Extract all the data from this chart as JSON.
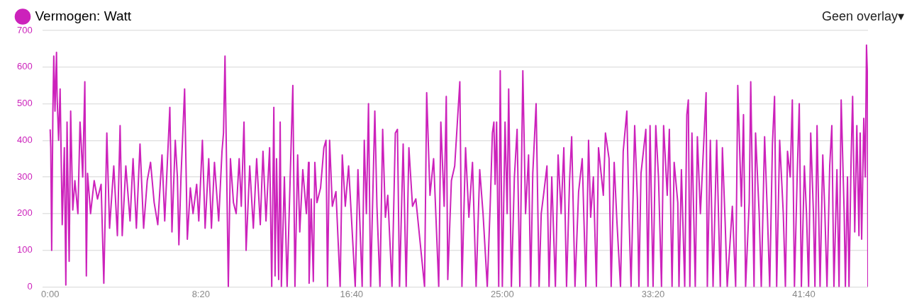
{
  "chart_data": {
    "type": "line",
    "annotations": [
      "Geen overlay▾"
    ],
    "legend": "top left",
    "grid": "y",
    "marker": "none",
    "line_style": "solid",
    "xlim": [
      -26,
      2713
    ],
    "ylim": [
      0,
      700
    ],
    "xticks": [
      {
        "value": 0,
        "label": "0:00"
      },
      {
        "value": 500,
        "label": "8:20"
      },
      {
        "value": 1000,
        "label": "16:40"
      },
      {
        "value": 1500,
        "label": "25:00"
      },
      {
        "value": 2000,
        "label": "33:20"
      },
      {
        "value": 2500,
        "label": "41:40"
      }
    ],
    "yticks": [
      0,
      100,
      200,
      300,
      400,
      500,
      600,
      700
    ],
    "x": [
      0,
      2,
      5,
      9,
      12,
      16,
      21,
      23,
      28,
      33,
      40,
      47,
      52,
      56,
      63,
      68,
      75,
      82,
      92,
      99,
      103,
      108,
      115,
      120,
      124,
      134,
      146,
      157,
      169,
      178,
      188,
      197,
      211,
      223,
      232,
      239,
      251,
      265,
      275,
      286,
      298,
      310,
      322,
      333,
      345,
      357,
      371,
      380,
      397,
      404,
      415,
      422,
      427,
      434,
      446,
      455,
      465,
      474,
      486,
      493,
      505,
      514,
      526,
      535,
      545,
      559,
      570,
      575,
      580,
      587,
      591,
      598,
      608,
      617,
      627,
      634,
      643,
      650,
      662,
      674,
      685,
      697,
      706,
      716,
      728,
      735,
      742,
      746,
      751,
      758,
      763,
      767,
      777,
      786,
      798,
      805,
      812,
      821,
      828,
      838,
      850,
      857,
      859,
      866,
      873,
      878,
      885,
      897,
      908,
      915,
      920,
      927,
      936,
      948,
      962,
      969,
      979,
      990,
      1012,
      1021,
      1035,
      1042,
      1049,
      1056,
      1063,
      1077,
      1084,
      1094,
      1103,
      1112,
      1120,
      1134,
      1145,
      1152,
      1159,
      1171,
      1181,
      1190,
      1202,
      1213,
      1242,
      1249,
      1260,
      1272,
      1289,
      1296,
      1307,
      1314,
      1319,
      1331,
      1342,
      1359,
      1366,
      1378,
      1389,
      1401,
      1413,
      1425,
      1436,
      1450,
      1460,
      1467,
      1472,
      1476,
      1481,
      1488,
      1493,
      1500,
      1509,
      1516,
      1521,
      1530,
      1540,
      1549,
      1558,
      1568,
      1577,
      1587,
      1594,
      1601,
      1612,
      1622,
      1629,
      1638,
      1648,
      1655,
      1664,
      1676,
      1685,
      1695,
      1704,
      1713,
      1723,
      1730,
      1741,
      1753,
      1765,
      1777,
      1786,
      1793,
      1802,
      1812,
      1819,
      1835,
      1842,
      1854,
      1861,
      1871,
      1880,
      1892,
      1901,
      1913,
      1920,
      1927,
      1939,
      1948,
      1953,
      1960,
      1976,
      1983,
      1990,
      2000,
      2009,
      2018,
      2028,
      2035,
      2047,
      2054,
      2063,
      2070,
      2082,
      2086,
      2094,
      2105,
      2112,
      2117,
      2122,
      2129,
      2140,
      2147,
      2157,
      2176,
      2180,
      2190,
      2199,
      2211,
      2223,
      2230,
      2239,
      2246,
      2263,
      2274,
      2281,
      2293,
      2300,
      2307,
      2319,
      2324,
      2335,
      2340,
      2352,
      2359,
      2370,
      2380,
      2387,
      2396,
      2403,
      2410,
      2420,
      2432,
      2439,
      2446,
      2455,
      2462,
      2469,
      2478,
      2485,
      2492,
      2502,
      2509,
      2516,
      2523,
      2532,
      2537,
      2544,
      2554,
      2563,
      2570,
      2577,
      2586,
      2593,
      2600,
      2610,
      2617,
      2624,
      2634,
      2638,
      2645,
      2650,
      2657,
      2662,
      2669,
      2676,
      2683,
      2687,
      2692,
      2699,
      2704,
      2708,
      2711,
      2713
    ],
    "series": [
      {
        "name": "Vermogen: Watt",
        "color": "#cc22bb",
        "values": [
          430,
          380,
          100,
          480,
          630,
          480,
          640,
          520,
          400,
          540,
          170,
          380,
          5,
          450,
          70,
          480,
          210,
          290,
          200,
          450,
          390,
          300,
          560,
          30,
          310,
          200,
          290,
          240,
          280,
          10,
          420,
          160,
          330,
          140,
          440,
          140,
          330,
          180,
          350,
          160,
          390,
          160,
          290,
          340,
          230,
          170,
          360,
          180,
          490,
          150,
          400,
          300,
          115,
          300,
          540,
          130,
          270,
          200,
          280,
          180,
          400,
          160,
          350,
          160,
          340,
          180,
          370,
          420,
          630,
          230,
          0,
          350,
          230,
          200,
          350,
          220,
          450,
          100,
          330,
          160,
          350,
          170,
          370,
          180,
          380,
          0,
          490,
          30,
          350,
          20,
          450,
          0,
          300,
          0,
          350,
          550,
          0,
          360,
          150,
          320,
          200,
          340,
          10,
          240,
          15,
          340,
          230,
          270,
          380,
          400,
          0,
          400,
          220,
          260,
          0,
          360,
          220,
          330,
          0,
          320,
          0,
          400,
          200,
          500,
          0,
          480,
          220,
          0,
          430,
          190,
          250,
          0,
          420,
          430,
          0,
          390,
          0,
          380,
          220,
          240,
          0,
          530,
          250,
          350,
          0,
          450,
          220,
          520,
          20,
          290,
          330,
          560,
          0,
          380,
          190,
          340,
          0,
          320,
          200,
          0,
          230,
          420,
          450,
          280,
          450,
          0,
          590,
          0,
          450,
          200,
          540,
          0,
          300,
          430,
          0,
          590,
          200,
          360,
          0,
          310,
          500,
          0,
          200,
          260,
          330,
          0,
          300,
          0,
          360,
          200,
          380,
          0,
          290,
          410,
          0,
          260,
          350,
          0,
          400,
          190,
          300,
          0,
          380,
          250,
          420,
          350,
          0,
          340,
          180,
          0,
          370,
          480,
          200,
          0,
          440,
          240,
          0,
          310,
          430,
          0,
          440,
          0,
          440,
          300,
          0,
          440,
          250,
          430,
          0,
          340,
          230,
          0,
          320,
          0,
          470,
          510,
          0,
          420,
          0,
          410,
          200,
          530,
          0,
          400,
          0,
          400,
          0,
          380,
          180,
          0,
          220,
          0,
          550,
          220,
          470,
          0,
          230,
          560,
          0,
          420,
          200,
          0,
          410,
          180,
          0,
          390,
          520,
          0,
          400,
          200,
          0,
          370,
          300,
          510,
          0,
          300,
          500,
          0,
          330,
          200,
          0,
          420,
          200,
          0,
          440,
          0,
          360,
          200,
          0,
          330,
          440,
          0,
          320,
          0,
          510,
          200,
          0,
          300,
          0,
          350,
          520,
          150,
          440,
          140,
          420,
          130,
          460,
          300,
          660,
          580,
          0
        ]
      }
    ]
  }
}
